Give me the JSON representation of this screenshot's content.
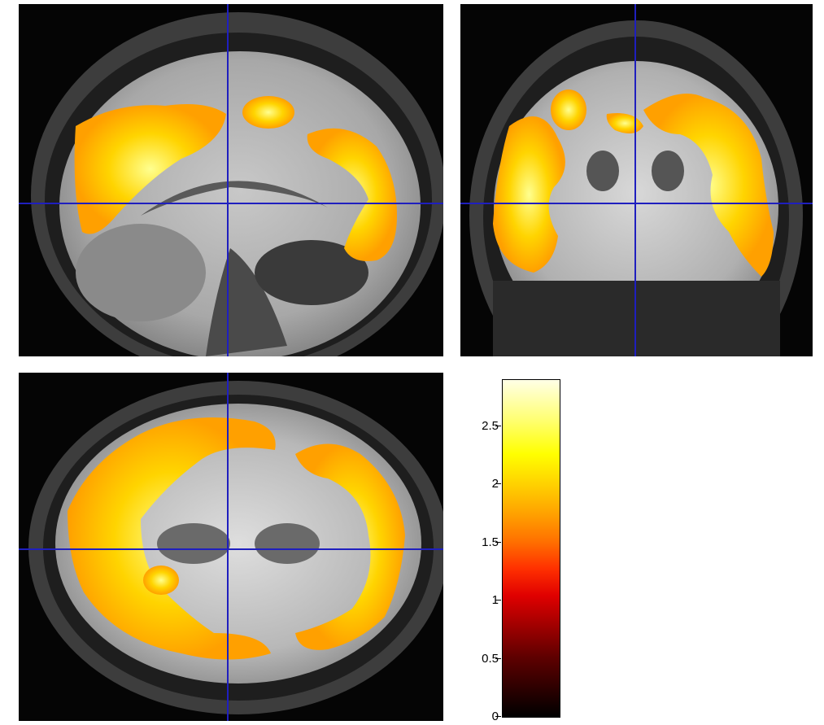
{
  "figure": {
    "views": [
      {
        "name": "sagittal"
      },
      {
        "name": "coronal"
      },
      {
        "name": "axial"
      }
    ],
    "crosshair_color": "#1f1fbf",
    "colormap": "hot",
    "colorbar": {
      "min": 0,
      "max": 2.9,
      "ticks": [
        {
          "value": 0,
          "label": "0"
        },
        {
          "value": 0.5,
          "label": "0.5"
        },
        {
          "value": 1,
          "label": "1"
        },
        {
          "value": 1.5,
          "label": "1.5"
        },
        {
          "value": 2,
          "label": "2"
        },
        {
          "value": 2.5,
          "label": "2.5"
        }
      ]
    }
  }
}
